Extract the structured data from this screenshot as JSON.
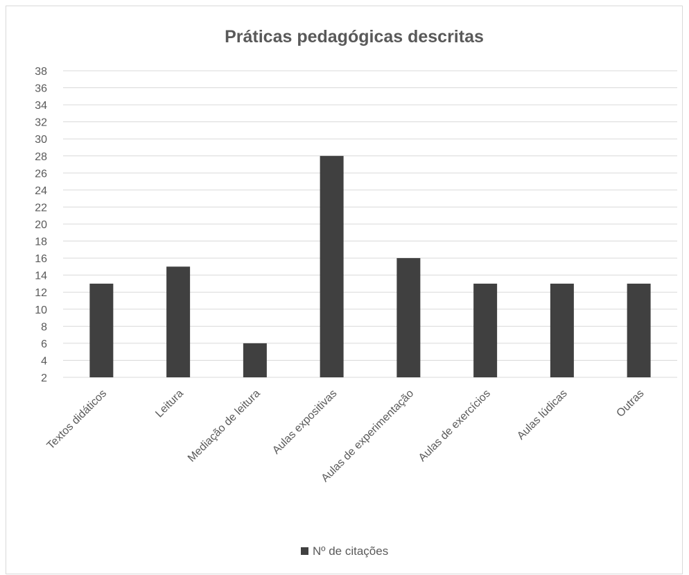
{
  "chart_data": {
    "type": "bar",
    "title": "Práticas pedagógicas descritas",
    "categories": [
      "Textos didáticos",
      "Leitura",
      "Mediação de leitura",
      "Aulas expositivas",
      "Aulas de experimentação",
      "Aulas de exercícios",
      "Aulas lúdicas",
      "Outras"
    ],
    "series": [
      {
        "name": "Nº de citações",
        "values": [
          13,
          15,
          6,
          28,
          16,
          13,
          13,
          13
        ],
        "color": "#404040"
      }
    ],
    "ylim": [
      2,
      38
    ],
    "yticks": [
      2,
      4,
      6,
      8,
      10,
      12,
      14,
      16,
      18,
      20,
      22,
      24,
      26,
      28,
      30,
      32,
      34,
      36,
      38
    ],
    "xlabel": "",
    "ylabel": "",
    "grid": true,
    "legend": "bottom"
  }
}
